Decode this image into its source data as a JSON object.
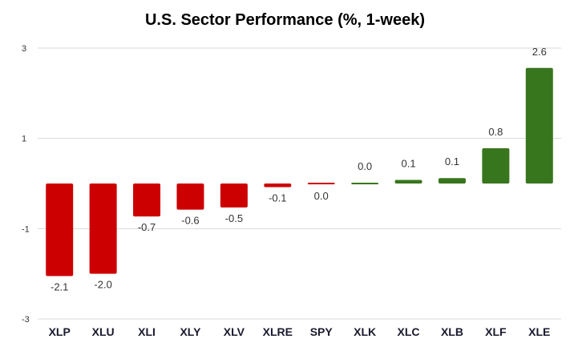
{
  "chart_data": {
    "type": "bar",
    "title": "U.S. Sector Performance (%, 1-week)",
    "xlabel": "",
    "ylabel": "",
    "ylim": [
      -3,
      3
    ],
    "yticks": [
      3,
      1,
      -1,
      -3
    ],
    "grid": true,
    "categories": [
      "XLP",
      "XLU",
      "XLI",
      "XLY",
      "XLV",
      "XLRE",
      "SPY",
      "XLK",
      "XLC",
      "XLB",
      "XLF",
      "XLE"
    ],
    "values": [
      -2.05,
      -2.0,
      -0.73,
      -0.58,
      -0.53,
      -0.08,
      -0.02,
      0.02,
      0.08,
      0.12,
      0.78,
      2.56
    ],
    "data_labels": [
      "-2.1",
      "-2.0",
      "-0.7",
      "-0.6",
      "-0.5",
      "-0.1",
      "0.0",
      "0.0",
      "0.1",
      "0.1",
      "0.8",
      "2.6"
    ],
    "colors": {
      "negative": "#cc0000",
      "positive": "#38761d"
    }
  }
}
